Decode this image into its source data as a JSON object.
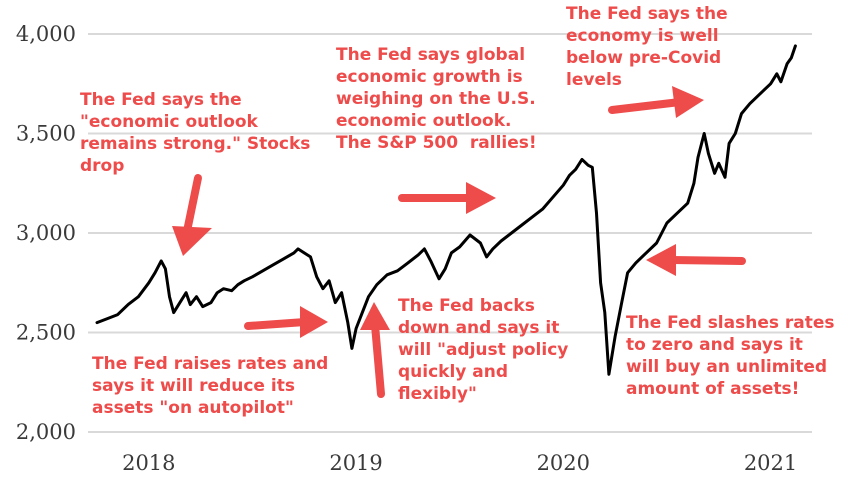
{
  "chart_data": {
    "type": "line",
    "title": "",
    "xlabel": "",
    "ylabel": "",
    "ylim": [
      2000,
      4000
    ],
    "xlim": [
      2017.75,
      2021.2
    ],
    "yticks": [
      {
        "value": 4000,
        "label": "4,000"
      },
      {
        "value": 3500,
        "label": "3,500"
      },
      {
        "value": 3000,
        "label": "3,000"
      },
      {
        "value": 2500,
        "label": "2,500"
      },
      {
        "value": 2000,
        "label": "2,000"
      }
    ],
    "xticks": [
      {
        "value": 2018,
        "label": "2018"
      },
      {
        "value": 2019,
        "label": "2019"
      },
      {
        "value": 2020,
        "label": "2020"
      },
      {
        "value": 2021,
        "label": "2021"
      }
    ],
    "grid": true,
    "series": [
      {
        "x": [
          2017.75,
          2017.8,
          2017.85,
          2017.9,
          2017.95,
          2018.0,
          2018.03,
          2018.06,
          2018.08,
          2018.1,
          2018.12,
          2018.15,
          2018.18,
          2018.2,
          2018.23,
          2018.26,
          2018.3,
          2018.33,
          2018.36,
          2018.4,
          2018.43,
          2018.46,
          2018.5,
          2018.55,
          2018.6,
          2018.65,
          2018.7,
          2018.72,
          2018.75,
          2018.78,
          2018.81,
          2018.84,
          2018.87,
          2018.9,
          2018.93,
          2018.96,
          2018.98,
          2019.0,
          2019.03,
          2019.06,
          2019.1,
          2019.15,
          2019.2,
          2019.25,
          2019.3,
          2019.33,
          2019.36,
          2019.4,
          2019.43,
          2019.46,
          2019.5,
          2019.55,
          2019.6,
          2019.63,
          2019.66,
          2019.7,
          2019.75,
          2019.8,
          2019.85,
          2019.9,
          2019.95,
          2020.0,
          2020.03,
          2020.06,
          2020.09,
          2020.12,
          2020.14,
          2020.16,
          2020.18,
          2020.2,
          2020.22,
          2020.25,
          2020.28,
          2020.31,
          2020.35,
          2020.4,
          2020.45,
          2020.5,
          2020.55,
          2020.6,
          2020.63,
          2020.65,
          2020.68,
          2020.7,
          2020.73,
          2020.75,
          2020.78,
          2020.8,
          2020.83,
          2020.86,
          2020.9,
          2020.95,
          2021.0,
          2021.03,
          2021.05,
          2021.08,
          2021.1,
          2021.12
        ],
        "y": [
          2550,
          2570,
          2590,
          2640,
          2680,
          2750,
          2800,
          2860,
          2820,
          2680,
          2600,
          2650,
          2700,
          2640,
          2680,
          2630,
          2650,
          2700,
          2720,
          2710,
          2740,
          2760,
          2780,
          2810,
          2840,
          2870,
          2900,
          2920,
          2900,
          2880,
          2780,
          2720,
          2760,
          2650,
          2700,
          2550,
          2420,
          2520,
          2600,
          2680,
          2740,
          2790,
          2810,
          2850,
          2890,
          2920,
          2860,
          2770,
          2820,
          2900,
          2930,
          2990,
          2950,
          2880,
          2920,
          2960,
          3000,
          3040,
          3080,
          3120,
          3180,
          3240,
          3290,
          3320,
          3370,
          3340,
          3330,
          3100,
          2750,
          2600,
          2290,
          2480,
          2640,
          2800,
          2850,
          2900,
          2950,
          3050,
          3100,
          3150,
          3250,
          3380,
          3500,
          3400,
          3300,
          3350,
          3280,
          3450,
          3500,
          3600,
          3650,
          3700,
          3750,
          3800,
          3760,
          3850,
          3880,
          3940
        ]
      }
    ],
    "annotations": [
      "The Fed says the\n\"economic outlook\nremains strong.\" Stocks\ndrop",
      "The Fed raises rates and\nsays it will reduce its\nassets \"on autopilot\"",
      "The Fed backs\ndown and says it\nwill \"adjust policy\nquickly and\nflexibly\"",
      "The Fed says global\neconomic growth is\nweighing on the U.S.\neconomic outlook.\nThe S&P 500  rallies!",
      "The Fed says the\neconomy is well\nbelow pre-Covid\nlevels",
      "The Fed slashes rates\nto zero and says it\nwill buy an unlimited\namount of assets!"
    ]
  },
  "colors": {
    "line": "#000000",
    "annotation": "#ee4b4b",
    "grid": "#d9d9d9",
    "tick_text": "#3a3a3a"
  }
}
